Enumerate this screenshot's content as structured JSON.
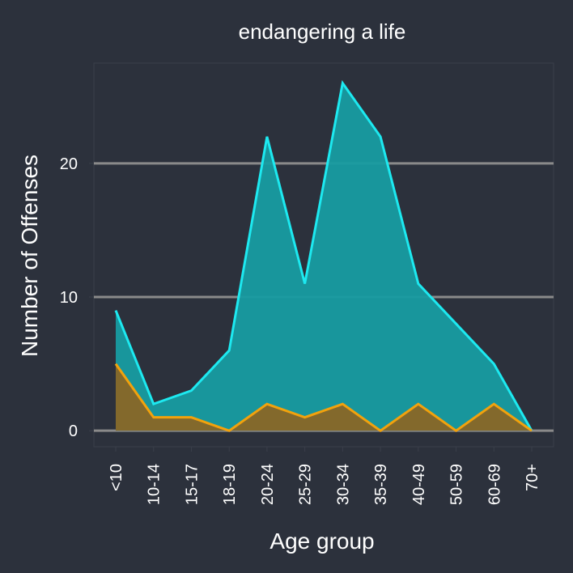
{
  "chart_data": {
    "type": "area",
    "title": "endangering a life",
    "xlabel": "Age group",
    "ylabel": "Number of Offenses",
    "categories": [
      "<10",
      "10-14",
      "15-17",
      "18-19",
      "20-24",
      "25-29",
      "30-34",
      "35-39",
      "40-49",
      "50-59",
      "60-69",
      "70+"
    ],
    "series": [
      {
        "color": "#1de9f0",
        "fill": "#179ca1",
        "values": [
          9,
          2,
          3,
          6,
          22,
          11,
          26,
          22,
          11,
          8,
          5,
          0
        ]
      },
      {
        "color": "#f2a20c",
        "fill": "#8f6420",
        "values": [
          5,
          1,
          1,
          0,
          2,
          1,
          2,
          0,
          2,
          0,
          2,
          0
        ]
      }
    ],
    "yticks": [
      0,
      10,
      20
    ],
    "ylim": [
      -1.2,
      27.5
    ],
    "grid": true,
    "legend": "none"
  },
  "colors": {
    "background": "#2c313c",
    "panel_border": "#3a3f4a",
    "grid": "#8a8a8a",
    "text": "#ffffff"
  }
}
